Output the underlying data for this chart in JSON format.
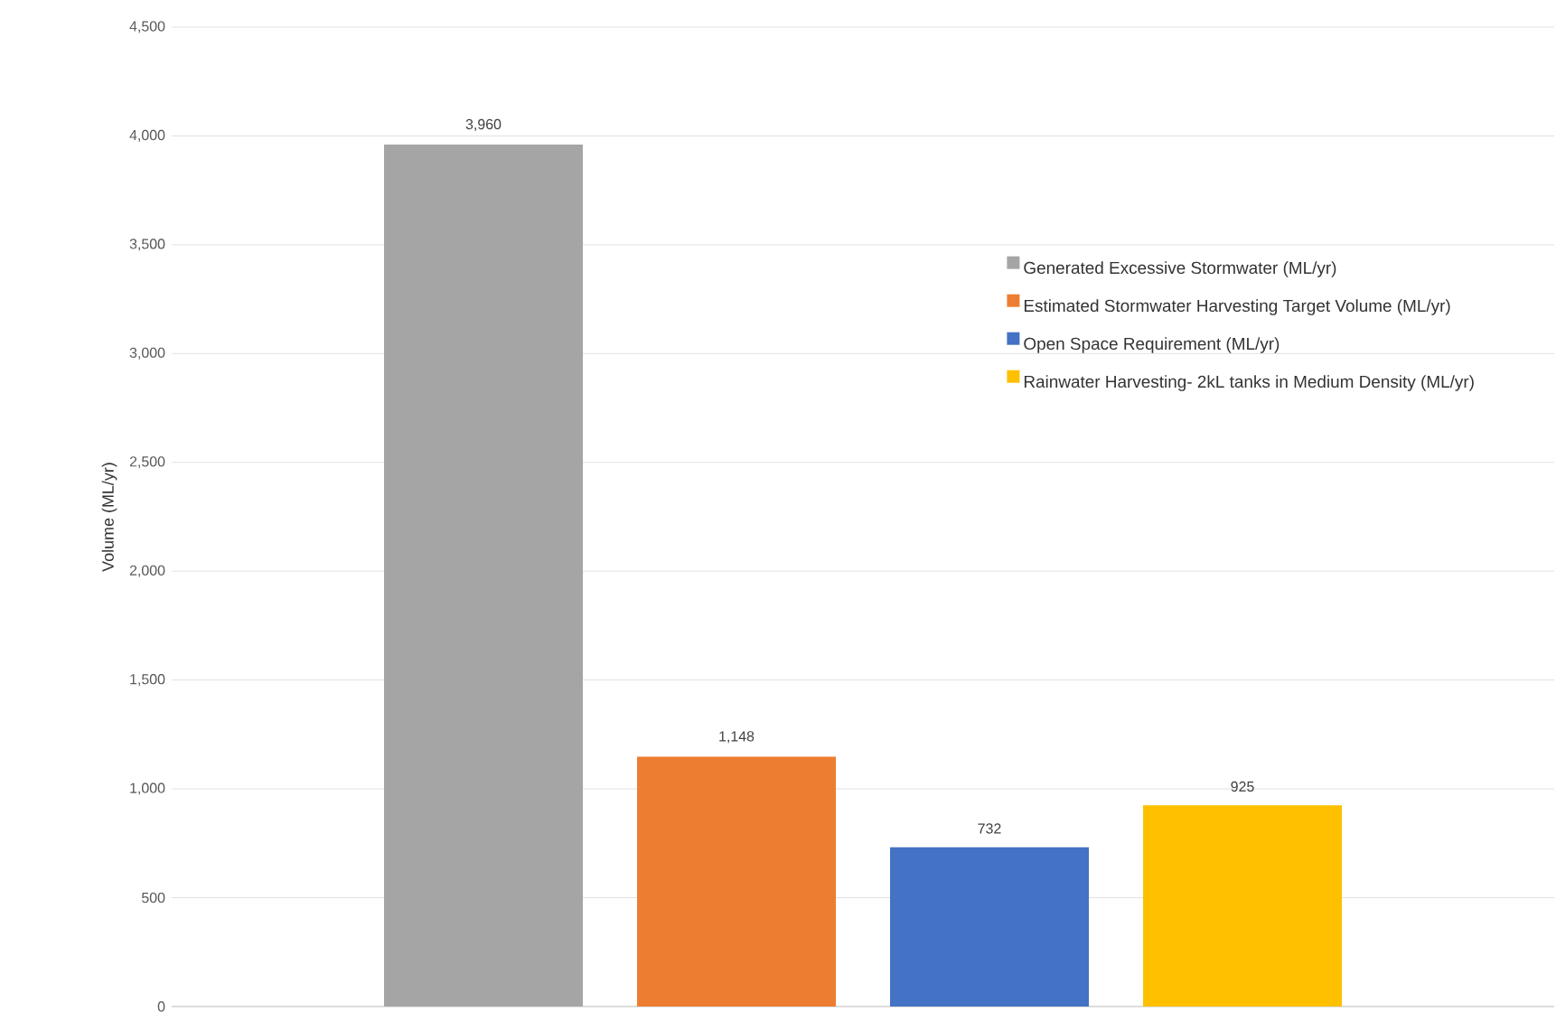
{
  "chart_data": {
    "type": "bar",
    "ylabel": "Volume (ML/yr)",
    "categories": [
      null
    ],
    "series": [
      {
        "name": "Generated Excessive Stormwater (ML/yr)",
        "color": "#a5a5a5",
        "values": [
          3960
        ],
        "value_labels": [
          "3,960"
        ]
      },
      {
        "name": "Estimated Stormwater Harvesting Target Volume (ML/yr)",
        "color": "#ed7d31",
        "values": [
          1148
        ],
        "value_labels": [
          "1,148"
        ]
      },
      {
        "name": "Open Space Requirement (ML/yr)",
        "color": "#4472c4",
        "values": [
          732
        ],
        "value_labels": [
          "732"
        ]
      },
      {
        "name": "Rainwater Harvesting- 2kL tanks in Medium Density (ML/yr)",
        "color": "#ffc000",
        "values": [
          925
        ],
        "value_labels": [
          "925"
        ]
      }
    ],
    "ylim": [
      0,
      4500
    ],
    "yticks": [
      0,
      500,
      {
        "value": 1000,
        "label": "1,000"
      },
      {
        "value": 1500,
        "label": "1,500"
      },
      {
        "value": 2000,
        "label": "2,000"
      },
      {
        "value": 2500,
        "label": "2,500"
      },
      {
        "value": 3000,
        "label": "3,000"
      },
      {
        "value": 3500,
        "label": "3,500"
      },
      {
        "value": 4000,
        "label": "4,000"
      },
      {
        "value": 4500,
        "label": "4,500"
      }
    ],
    "grid": "y",
    "legend": "right"
  }
}
